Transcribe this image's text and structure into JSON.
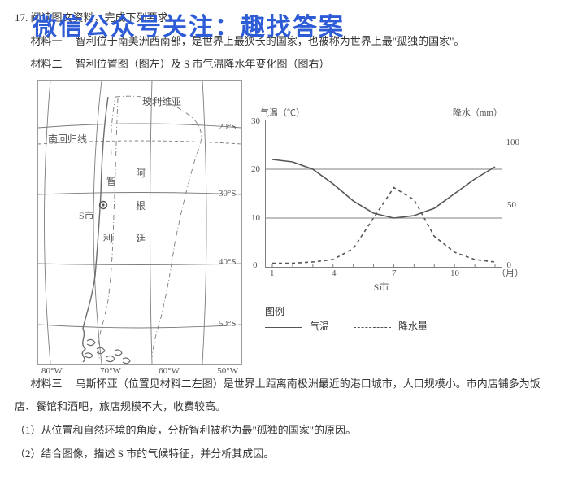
{
  "overlay": "微信公众号关注：趣找答案",
  "q_number": "17.",
  "q_head": "阅读图文资料，完成下列要求。",
  "material1_label": "材料一",
  "material1_body": "智利位于南美洲西南部，是世界上最狭长的国家，也被称为世界上最\"孤独的国家\"。",
  "material2_label": "材料二",
  "material2_body": "智利位置图（图左）及 S 市气温降水年变化图（图右）",
  "map": {
    "tropic_label": "南回归线",
    "countries": {
      "bolivia": "玻利维亚",
      "argentina_a": "阿",
      "argentina_b": "根",
      "argentina_c": "廷",
      "chile_a": "智",
      "chile_b": "利"
    },
    "city_label": "S市",
    "lat_ticks": [
      "20°S",
      "30°S",
      "40°S",
      "50°S"
    ],
    "lon_ticks": [
      "80°W",
      "70°W",
      "60°W",
      "50°W"
    ],
    "line_color": "#7c7c7c",
    "coast_color": "#6d6d6d",
    "text_color": "#565656"
  },
  "chart": {
    "temp_axis_label": "气温（℃）",
    "precip_axis_label": "降水（mm）",
    "x_caption": "S市",
    "x_unit": "（月）",
    "temp_ticks": [
      0,
      10,
      20,
      30
    ],
    "precip_ticks": [
      0,
      50,
      100
    ],
    "month_ticks": [
      1,
      4,
      7,
      10
    ],
    "temp_series": [
      22,
      21.5,
      20,
      17,
      13.5,
      11,
      10,
      10.5,
      12,
      15,
      18,
      20.5
    ],
    "precip_series": [
      3,
      3,
      4,
      6,
      15,
      40,
      65,
      55,
      25,
      12,
      6,
      4
    ],
    "temp_ylim": [
      0,
      30
    ],
    "precip_ylim": [
      0,
      120
    ],
    "grid_color": "#808080",
    "line_color": "#555555",
    "font_size_axis": 11
  },
  "legend": {
    "title": "图例",
    "temp": "气温",
    "precip": "降水量"
  },
  "material3_label": "材料三",
  "material3_body": "乌斯怀亚（位置见材料二左图）是世界上距离南极洲最近的港口城市，人口规模小。市内店铺多为饭店、餐馆和酒吧，旅店规模不大，收费较高。",
  "q1": "（1）从位置和自然环境的角度，分析智利被称为最\"孤独的国家\"的原因。",
  "q2": "（2）结合图像，描述 S 市的气候特征，并分析其成因。"
}
